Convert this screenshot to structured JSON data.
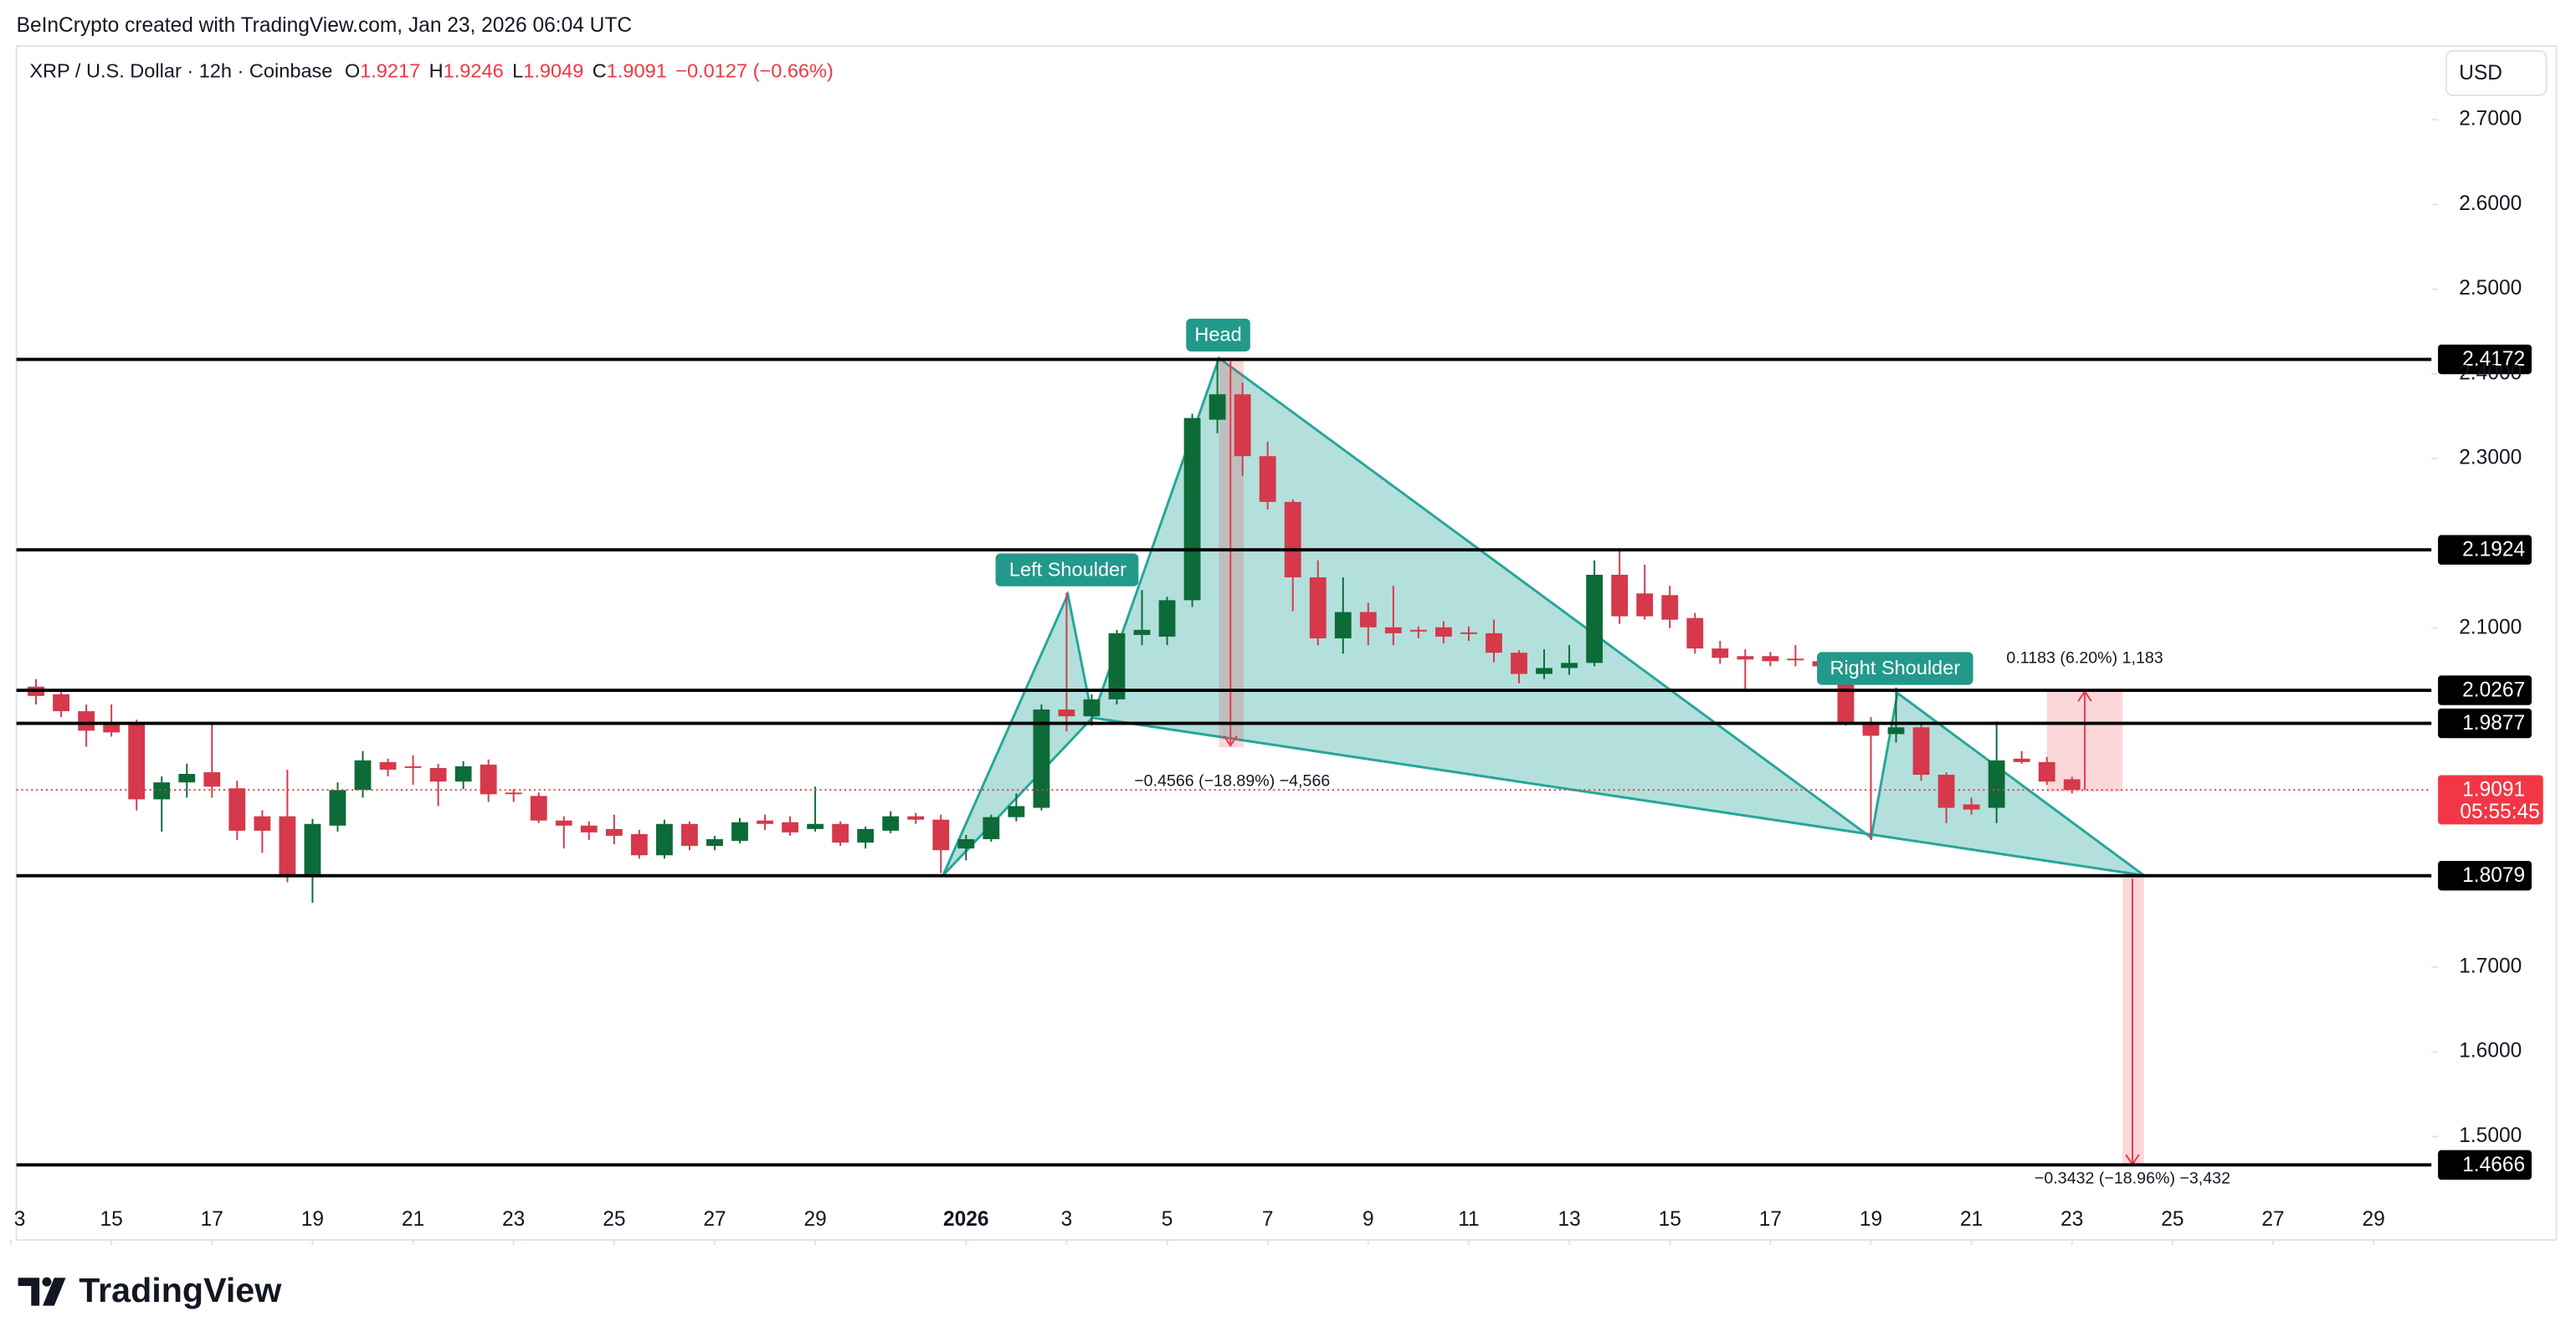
{
  "header": {
    "credit": "BeInCrypto created with TradingView.com, Jan 23, 2026 06:04 UTC",
    "currency_button": "USD",
    "logo": "TradingView"
  },
  "chart_data": {
    "type": "candlestick",
    "title": "XRP / U.S. Dollar · 12h · Coinbase",
    "ohlc_legend": [
      {
        "label": "O",
        "value": 1.9217
      },
      {
        "label": "H",
        "value": 1.9246
      },
      {
        "label": "L",
        "value": 1.9049
      },
      {
        "label": "C",
        "value": 1.9091
      }
    ],
    "change_text": "−0.0127 (−0.66%)",
    "up_color": "#0d6b38",
    "down_color": "#d5394b",
    "open": [
      2.031,
      2.022,
      2.002,
      1.989,
      1.989,
      1.898,
      1.918,
      1.93,
      1.911,
      1.878,
      1.878,
      1.806,
      1.867,
      1.909,
      1.942,
      1.937,
      1.935,
      1.919,
      1.939,
      1.906,
      1.902,
      1.873,
      1.867,
      1.863,
      1.857,
      1.832,
      1.869,
      1.843,
      1.849,
      1.873,
      1.871,
      1.863,
      1.869,
      1.847,
      1.861,
      1.878,
      1.874,
      1.84,
      1.851,
      1.877,
      1.888,
      2.004,
      1.996,
      2.016,
      2.092,
      2.09,
      2.133,
      2.346,
      2.376,
      2.303,
      2.249,
      2.16,
      2.088,
      2.119,
      2.101,
      2.098,
      2.101,
      2.095,
      2.094,
      2.071,
      2.046,
      2.053,
      2.059,
      2.163,
      2.141,
      2.139,
      2.112,
      2.076,
      2.067,
      2.067,
      2.064,
      2.061,
      2.055,
      1.989,
      1.975,
      1.983,
      1.927,
      1.892,
      1.888,
      1.946,
      1.942,
      1.9217
    ],
    "high": [
      2.04,
      2.028,
      2.01,
      2.01,
      1.992,
      1.925,
      1.94,
      1.988,
      1.92,
      1.885,
      1.933,
      1.875,
      1.918,
      1.955,
      1.946,
      1.95,
      1.94,
      1.943,
      1.945,
      1.91,
      1.906,
      1.878,
      1.872,
      1.88,
      1.862,
      1.874,
      1.872,
      1.855,
      1.876,
      1.88,
      1.878,
      1.913,
      1.872,
      1.866,
      1.884,
      1.882,
      1.88,
      1.856,
      1.88,
      1.905,
      2.01,
      2.142,
      2.022,
      2.098,
      2.145,
      2.137,
      2.353,
      2.417,
      2.39,
      2.32,
      2.252,
      2.18,
      2.16,
      2.13,
      2.15,
      2.102,
      2.108,
      2.102,
      2.11,
      2.074,
      2.075,
      2.08,
      2.18,
      2.192,
      2.175,
      2.15,
      2.118,
      2.085,
      2.075,
      2.072,
      2.08,
      2.07,
      2.06,
      1.995,
      2.03,
      1.988,
      1.93,
      1.9,
      1.99,
      1.955,
      1.948,
      1.9246
    ],
    "low": [
      2.01,
      1.995,
      1.96,
      1.972,
      1.885,
      1.86,
      1.9,
      1.9,
      1.85,
      1.835,
      1.8,
      1.776,
      1.86,
      1.9,
      1.925,
      1.915,
      1.89,
      1.91,
      1.895,
      1.895,
      1.87,
      1.84,
      1.85,
      1.845,
      1.828,
      1.828,
      1.838,
      1.838,
      1.846,
      1.862,
      1.855,
      1.86,
      1.843,
      1.84,
      1.858,
      1.869,
      1.811,
      1.826,
      1.848,
      1.872,
      1.885,
      1.978,
      1.985,
      2.01,
      2.08,
      2.08,
      2.125,
      2.33,
      2.28,
      2.24,
      2.12,
      2.08,
      2.07,
      2.08,
      2.08,
      2.088,
      2.082,
      2.085,
      2.06,
      2.035,
      2.04,
      2.045,
      2.055,
      2.105,
      2.11,
      2.1,
      2.07,
      2.058,
      2.025,
      2.055,
      2.055,
      2.045,
      1.985,
      1.85,
      1.965,
      1.92,
      1.87,
      1.88,
      1.87,
      1.94,
      1.915,
      1.9049
    ],
    "close": [
      2.02,
      2.002,
      1.979,
      1.977,
      1.898,
      1.918,
      1.928,
      1.913,
      1.861,
      1.861,
      1.806,
      1.869,
      1.909,
      1.944,
      1.933,
      1.936,
      1.919,
      1.937,
      1.904,
      1.905,
      1.873,
      1.867,
      1.859,
      1.855,
      1.832,
      1.869,
      1.843,
      1.851,
      1.871,
      1.869,
      1.859,
      1.869,
      1.847,
      1.863,
      1.878,
      1.874,
      1.838,
      1.851,
      1.877,
      1.89,
      2.004,
      1.996,
      2.016,
      2.094,
      2.098,
      2.133,
      2.348,
      2.376,
      2.303,
      2.249,
      2.16,
      2.088,
      2.119,
      2.101,
      2.094,
      2.097,
      2.09,
      2.094,
      2.071,
      2.046,
      2.053,
      2.059,
      2.163,
      2.114,
      2.114,
      2.11,
      2.076,
      2.065,
      2.063,
      2.061,
      2.063,
      2.055,
      1.989,
      1.973,
      1.983,
      1.927,
      1.888,
      1.886,
      1.944,
      1.942,
      1.919,
      1.9091
    ],
    "xlim": [
      -0.78,
      95.3
    ],
    "xticks": [
      {
        "value": -1,
        "label": "3"
      },
      {
        "value": 3,
        "label": "15"
      },
      {
        "value": 7,
        "label": "17"
      },
      {
        "value": 11,
        "label": "19"
      },
      {
        "value": 15,
        "label": "21"
      },
      {
        "value": 19,
        "label": "23"
      },
      {
        "value": 23,
        "label": "25"
      },
      {
        "value": 27,
        "label": "27"
      },
      {
        "value": 31,
        "label": "29"
      },
      {
        "value": 37,
        "label": "2026"
      },
      {
        "value": 41,
        "label": "3"
      },
      {
        "value": 45,
        "label": "5"
      },
      {
        "value": 49,
        "label": "7"
      },
      {
        "value": 53,
        "label": "9"
      },
      {
        "value": 57,
        "label": "11"
      },
      {
        "value": 61,
        "label": "13"
      },
      {
        "value": 65,
        "label": "15"
      },
      {
        "value": 69,
        "label": "17"
      },
      {
        "value": 73,
        "label": "19"
      },
      {
        "value": 77,
        "label": "21"
      },
      {
        "value": 81,
        "label": "23"
      },
      {
        "value": 85,
        "label": "25"
      },
      {
        "value": 89,
        "label": "27"
      },
      {
        "value": 93,
        "label": "29"
      }
    ],
    "bold_xtick": 9,
    "ylim": [
      1.378,
      2.787
    ],
    "yticks": [
      {
        "value": 2.7,
        "label": "2.7000"
      },
      {
        "value": 2.6,
        "label": "2.6000"
      },
      {
        "value": 2.5,
        "label": "2.5000"
      },
      {
        "value": 2.4,
        "label": "2.4000"
      },
      {
        "value": 2.3,
        "label": "2.3000"
      },
      {
        "value": 2.1,
        "label": "2.1000"
      },
      {
        "value": 1.7,
        "label": "1.7000"
      },
      {
        "value": 1.6,
        "label": "1.6000"
      },
      {
        "value": 1.5,
        "label": "1.5000"
      }
    ],
    "levels": [
      2.4172,
      2.1924,
      2.0267,
      1.9877,
      1.8079,
      1.4666
    ],
    "last_price": 1.9091,
    "countdown": "05:55:45",
    "pattern_labels": [
      "Left Shoulder",
      "Head",
      "Right Shoulder"
    ],
    "measures": [
      "−0.4566 (−18.89%) −4,566",
      "0.1183 (6.20%) 1,183",
      "−0.3432 (−18.96%) −3,432"
    ]
  }
}
